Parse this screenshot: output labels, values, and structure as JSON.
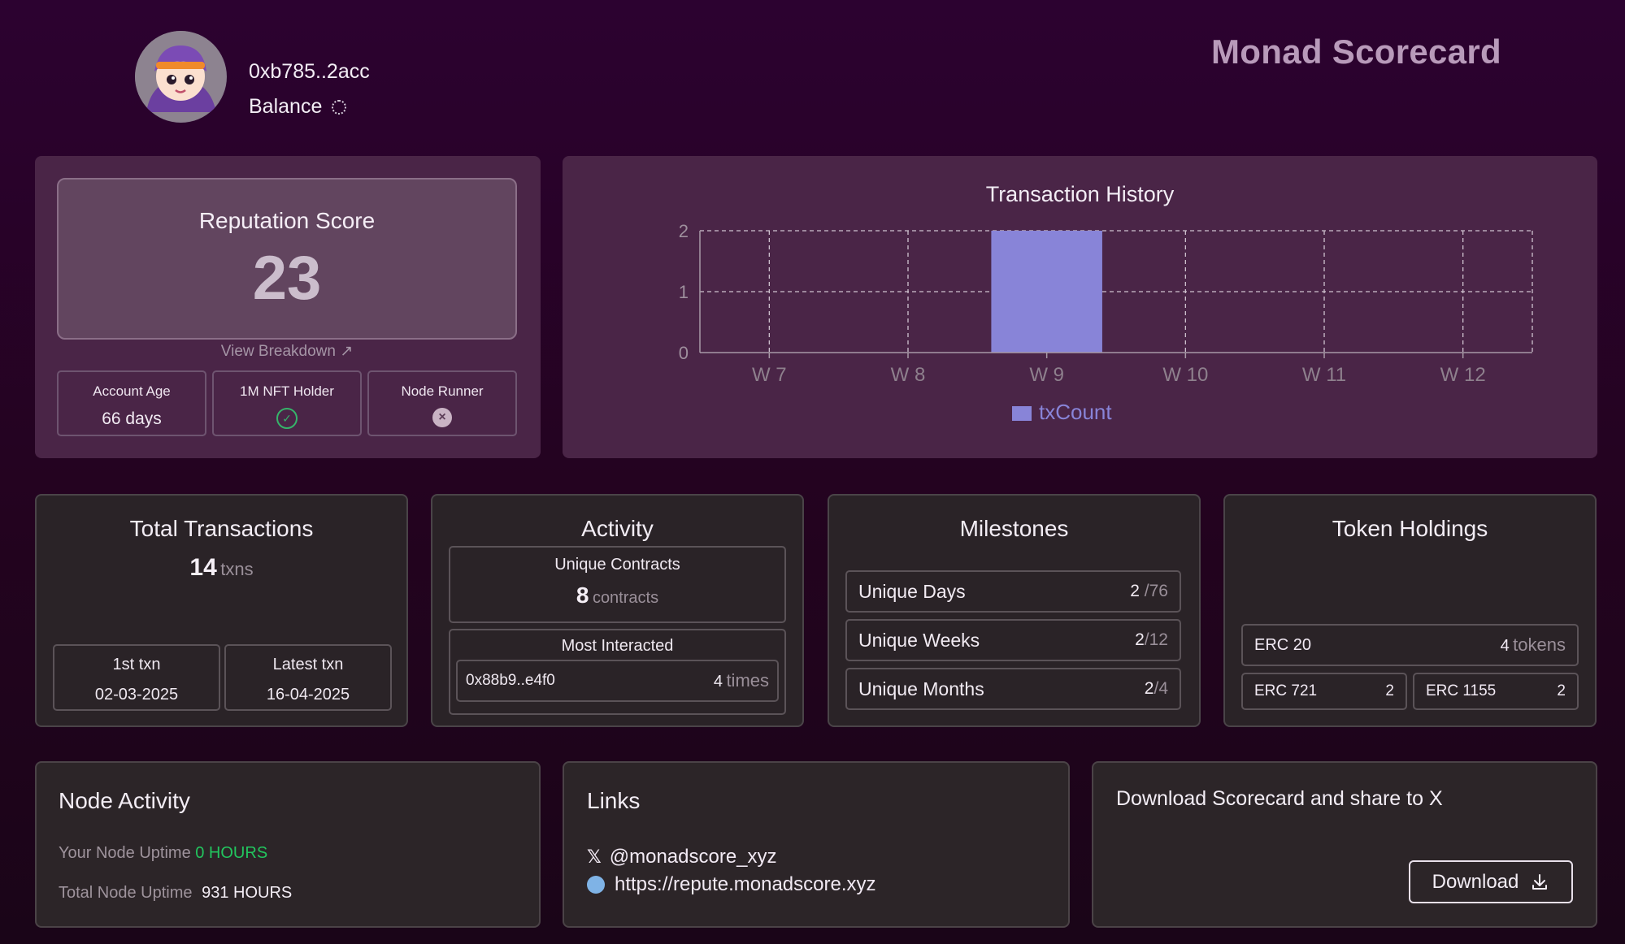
{
  "header": {
    "address": "0xb785..2acc",
    "balance_label": "Balance",
    "app_title": "Monad Scorecard"
  },
  "reputation": {
    "title": "Reputation Score",
    "score": "23",
    "view_breakdown": "View Breakdown",
    "badges": [
      {
        "label": "Account Age",
        "value": "66 days"
      },
      {
        "label": "1M NFT Holder",
        "status": "check"
      },
      {
        "label": "Node Runner",
        "status": "x"
      }
    ]
  },
  "chart_data": {
    "type": "bar",
    "title": "Transaction History",
    "categories": [
      "W 7",
      "W 8",
      "W 9",
      "W 10",
      "W 11",
      "W 12"
    ],
    "series": [
      {
        "name": "txCount",
        "values": [
          0,
          0,
          2,
          0,
          0,
          0
        ],
        "color": "#8884d8"
      }
    ],
    "ylim": [
      0,
      2
    ],
    "yticks": [
      "0",
      "1",
      "2"
    ],
    "grid": true,
    "legend": "bottom"
  },
  "total_transactions": {
    "title": "Total Transactions",
    "count": "14",
    "unit": "txns",
    "first_label": "1st txn",
    "first_value": "02-03-2025",
    "latest_label": "Latest txn",
    "latest_value": "16-04-2025"
  },
  "activity": {
    "title": "Activity",
    "unique_label": "Unique Contracts",
    "unique_value": "8",
    "unique_unit": "contracts",
    "most_label": "Most Interacted",
    "most_address": "0x88b9..e4f0",
    "most_count": "4",
    "most_unit": "times"
  },
  "milestones": {
    "title": "Milestones",
    "rows": [
      {
        "label": "Unique Days",
        "value": "2",
        "total": "/76"
      },
      {
        "label": "Unique Weeks",
        "value": "2",
        "total": "/12"
      },
      {
        "label": "Unique Months",
        "value": "2",
        "total": "/4"
      }
    ]
  },
  "tokens": {
    "title": "Token Holdings",
    "erc20_label": "ERC 20",
    "erc20_value": "4",
    "erc20_unit": "tokens",
    "erc721_label": "ERC 721",
    "erc721_value": "2",
    "erc1155_label": "ERC 1155",
    "erc1155_value": "2"
  },
  "node": {
    "title": "Node Activity",
    "your_label": "Your Node Uptime",
    "your_value": "0 HOURS",
    "total_label": "Total Node Uptime",
    "total_value": "931 HOURS"
  },
  "links": {
    "title": "Links",
    "x_handle": "@monadscore_xyz",
    "website": "https://repute.monadscore.xyz"
  },
  "download": {
    "title": "Download Scorecard and share to X",
    "button_label": "Download"
  },
  "colors": {
    "accent_bar": "#8884d8",
    "uptime_green": "#22c55e"
  }
}
